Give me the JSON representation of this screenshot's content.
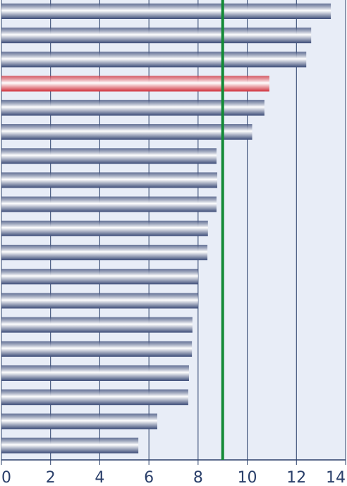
{
  "chart_data": {
    "type": "barh",
    "categories": [
      null,
      null,
      null,
      null,
      null,
      null,
      null,
      null,
      null,
      null,
      null,
      null,
      null,
      null,
      null,
      null,
      null,
      null,
      null
    ],
    "values": [
      13.4,
      12.6,
      12.4,
      10.9,
      10.7,
      10.2,
      8.75,
      8.78,
      8.75,
      8.4,
      8.38,
      8.0,
      8.0,
      7.77,
      7.75,
      7.63,
      7.6,
      6.34,
      5.57
    ],
    "colors": [
      "#3c4c78",
      "#3c4c78",
      "#3c4c78",
      "#d0303c",
      "#3c4c78",
      "#3c4c78",
      "#3c4c78",
      "#3c4c78",
      "#3c4c78",
      "#3c4c78",
      "#3c4c78",
      "#3c4c78",
      "#3c4c78",
      "#3c4c78",
      "#3c4c78",
      "#3c4c78",
      "#3c4c78",
      "#3c4c78",
      "#3c4c78"
    ],
    "xlim": [
      0,
      14
    ],
    "xticks": [
      0,
      2,
      4,
      6,
      8,
      10,
      12,
      14
    ],
    "grid": true,
    "reference_line": {
      "value": 9,
      "color": "#138a36"
    }
  }
}
